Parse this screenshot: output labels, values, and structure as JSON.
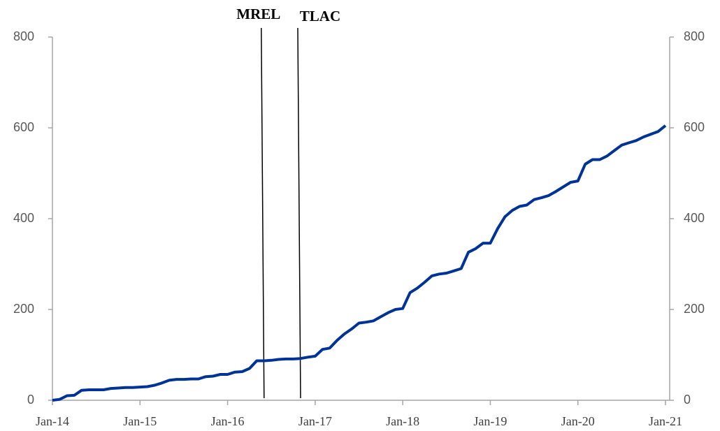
{
  "chart_data": {
    "type": "line",
    "categories": [
      "Jan-14",
      null,
      null,
      null,
      null,
      null,
      null,
      null,
      null,
      null,
      null,
      null,
      "Jan-15",
      null,
      null,
      null,
      null,
      null,
      null,
      null,
      null,
      null,
      null,
      null,
      "Jan-16",
      null,
      null,
      null,
      null,
      null,
      null,
      null,
      null,
      null,
      null,
      null,
      "Jan-17",
      null,
      null,
      null,
      null,
      null,
      null,
      null,
      null,
      null,
      null,
      null,
      "Jan-18",
      null,
      null,
      null,
      null,
      null,
      null,
      null,
      null,
      null,
      null,
      null,
      "Jan-19",
      null,
      null,
      null,
      null,
      null,
      null,
      null,
      null,
      null,
      null,
      null,
      "Jan-20",
      null,
      null,
      null,
      null,
      null,
      null,
      null,
      null,
      null,
      null,
      null,
      "Jan-21"
    ],
    "series": [
      {
        "color": "#003399",
        "values": [
          0,
          2,
          10,
          11,
          22,
          23,
          23,
          23,
          26,
          27,
          28,
          28,
          29,
          30,
          33,
          38,
          44,
          46,
          46,
          47,
          47,
          52,
          53,
          57,
          57,
          62,
          63,
          70,
          87,
          87,
          88,
          90,
          91,
          91,
          92,
          95,
          97,
          112,
          115,
          132,
          146,
          157,
          170,
          172,
          175,
          184,
          193,
          200,
          202,
          237,
          247,
          260,
          274,
          278,
          280,
          285,
          290,
          326,
          334,
          346,
          346,
          378,
          404,
          418,
          427,
          430,
          442,
          446,
          451,
          460,
          470,
          480,
          483,
          520,
          530,
          530,
          538,
          550,
          562,
          567,
          572,
          580,
          586,
          592,
          605
        ]
      }
    ],
    "ylim": [
      0,
      800
    ],
    "yticks": [
      0,
      200,
      400,
      600,
      800
    ],
    "y2lim": [
      0,
      800
    ],
    "y2ticks": [
      0,
      200,
      400,
      600,
      800
    ],
    "annotations": [
      {
        "text": "MREL",
        "index": 29
      },
      {
        "text": "TLAC",
        "index": 34
      }
    ]
  }
}
